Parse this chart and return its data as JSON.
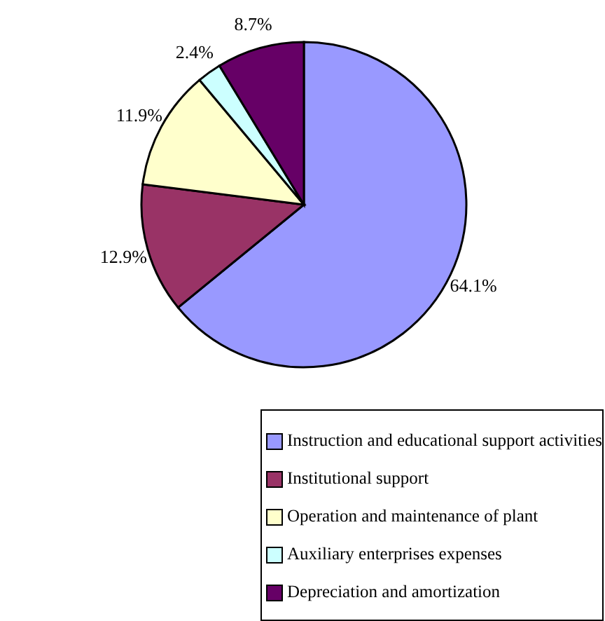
{
  "chart_data": {
    "type": "pie",
    "categories": [
      "Instruction and educational support activities",
      "Institutional support",
      "Operation and maintenance of plant",
      "Auxiliary enterprises expenses",
      "Depreciation and amortization"
    ],
    "values": [
      64.1,
      12.9,
      11.9,
      2.4,
      8.7
    ],
    "value_labels": [
      "64.1%",
      "12.9%",
      "11.9%",
      "2.4%",
      "8.7%"
    ],
    "colors": [
      "#9999ff",
      "#993366",
      "#ffffcc",
      "#ccffff",
      "#660066"
    ],
    "legend": "bottom"
  }
}
